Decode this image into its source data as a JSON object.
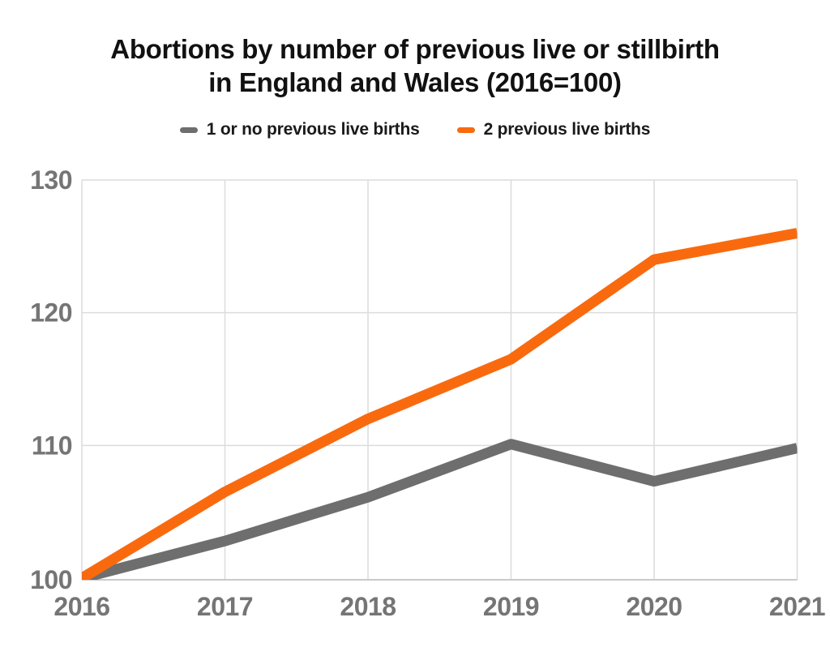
{
  "chart": {
    "title_line1": "Abortions by number of previous live or stillbirth",
    "title_line2": "in England and Wales (2016=100)"
  },
  "chart_data": {
    "type": "line",
    "title": "Abortions by number of previous live or stillbirth in England and Wales (2016=100)",
    "categories": [
      "2016",
      "2017",
      "2018",
      "2019",
      "2020",
      "2021"
    ],
    "series": [
      {
        "name": "1 or no previous live births",
        "color": "#6E6E6E",
        "values": [
          100,
          102.8,
          106.1,
          110.1,
          107.3,
          109.8
        ]
      },
      {
        "name": "2 previous live births",
        "color": "#F96A0F",
        "values": [
          100,
          106.5,
          112.0,
          116.5,
          124.0,
          126.0
        ]
      }
    ],
    "xlabel": "",
    "ylabel": "",
    "ylim": [
      100,
      130
    ],
    "yticks": [
      100,
      110,
      120,
      130
    ],
    "grid": true,
    "legend_position": "top",
    "line_width": 13,
    "colors": {
      "grid": "#DCDCDC",
      "baseline": "#C9C9C9",
      "tick_label": "#757575",
      "title": "#111111",
      "background": "#FFFFFF"
    }
  }
}
